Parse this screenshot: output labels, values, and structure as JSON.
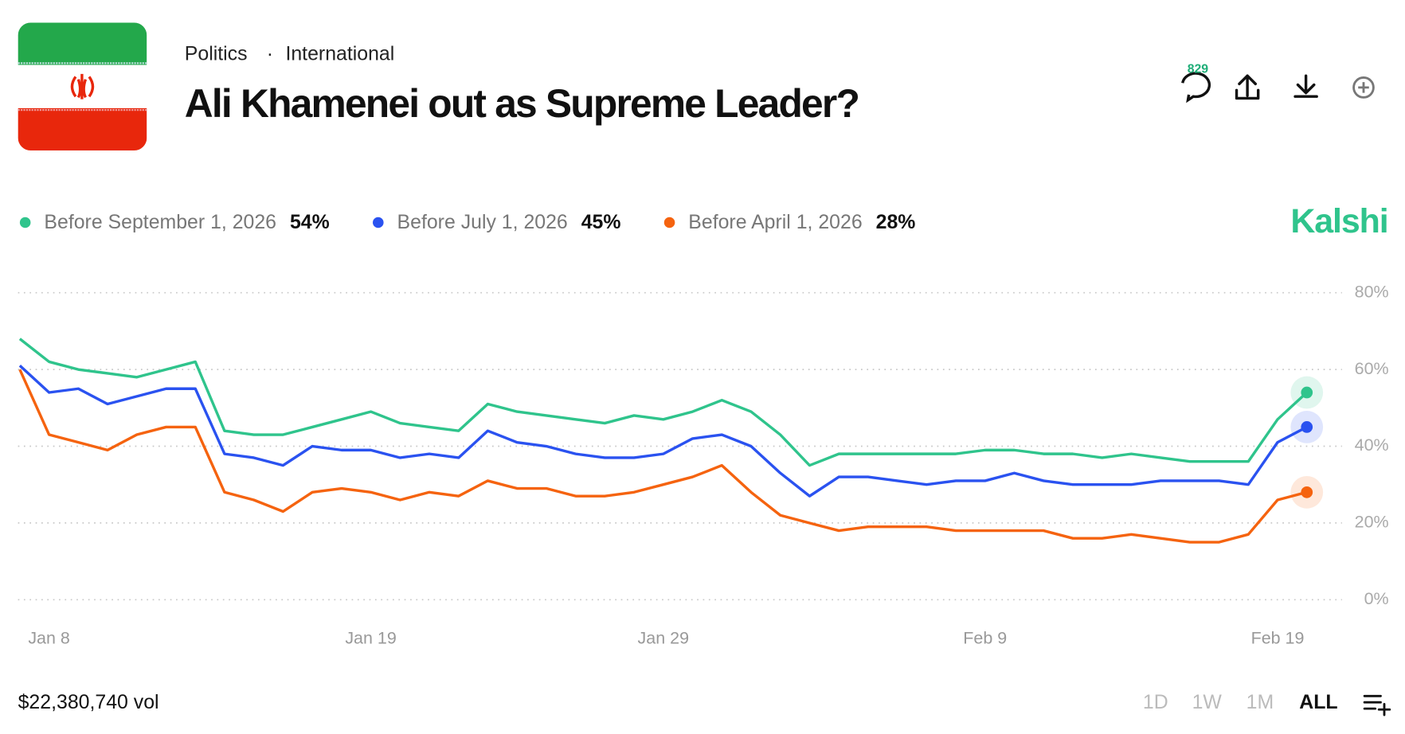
{
  "breadcrumb": [
    "Politics",
    "International"
  ],
  "title": "Ali Khamenei out as Supreme Leader?",
  "comments": "829",
  "brand": "Kalshi",
  "volume": "$22,380,740 vol",
  "ranges": [
    "1D",
    "1W",
    "1M",
    "ALL"
  ],
  "chart_data": {
    "type": "line",
    "x": [
      "Jan 7",
      "Jan 8",
      "Jan 9",
      "Jan 10",
      "Jan 11",
      "Jan 12",
      "Jan 13",
      "Jan 14",
      "Jan 15",
      "Jan 16",
      "Jan 17",
      "Jan 18",
      "Jan 19",
      "Jan 20",
      "Jan 21",
      "Jan 22",
      "Jan 23",
      "Jan 24",
      "Jan 25",
      "Jan 26",
      "Jan 27",
      "Jan 28",
      "Jan 29",
      "Jan 30",
      "Jan 31",
      "Feb 1",
      "Feb 2",
      "Feb 3",
      "Feb 4",
      "Feb 5",
      "Feb 6",
      "Feb 7",
      "Feb 8",
      "Feb 9",
      "Feb 10",
      "Feb 11",
      "Feb 12",
      "Feb 13",
      "Feb 14",
      "Feb 15",
      "Feb 16",
      "Feb 17",
      "Feb 18",
      "Feb 19",
      "Feb 20"
    ],
    "xticks": [
      "Jan 8",
      "Jan 19",
      "Jan 29",
      "Feb 9",
      "Feb 19"
    ],
    "ylim": [
      0,
      80
    ],
    "yticks": [
      {
        "value": 0,
        "label": "0%"
      },
      {
        "value": 20,
        "label": "20%"
      },
      {
        "value": 40,
        "label": "40%"
      },
      {
        "value": 60,
        "label": "60%"
      },
      {
        "value": 80,
        "label": "80%"
      }
    ],
    "grid": true,
    "series": [
      {
        "name": "Before September 1, 2026",
        "color": "#2fc48c",
        "current": {
          "value": 54,
          "label": "54%"
        },
        "values": [
          68,
          62,
          60,
          59,
          58,
          60,
          62,
          44,
          43,
          43,
          45,
          47,
          49,
          46,
          45,
          44,
          51,
          49,
          48,
          47,
          46,
          48,
          47,
          49,
          52,
          49,
          43,
          35,
          38,
          38,
          38,
          38,
          38,
          39,
          39,
          38,
          38,
          37,
          38,
          37,
          36,
          36,
          36,
          47,
          54
        ]
      },
      {
        "name": "Before July 1, 2026",
        "color": "#2a52f0",
        "current": {
          "value": 45,
          "label": "45%"
        },
        "values": [
          61,
          54,
          55,
          51,
          53,
          55,
          55,
          38,
          37,
          35,
          40,
          39,
          39,
          37,
          38,
          37,
          44,
          41,
          40,
          38,
          37,
          37,
          38,
          42,
          43,
          40,
          33,
          27,
          32,
          32,
          31,
          30,
          31,
          31,
          33,
          31,
          30,
          30,
          30,
          31,
          31,
          31,
          30,
          41,
          45
        ]
      },
      {
        "name": "Before April 1, 2026",
        "color": "#f5630f",
        "current": {
          "value": 28,
          "label": "28%"
        },
        "values": [
          60,
          43,
          41,
          39,
          43,
          45,
          45,
          28,
          26,
          23,
          28,
          29,
          28,
          26,
          28,
          27,
          31,
          29,
          29,
          27,
          27,
          28,
          30,
          32,
          35,
          28,
          22,
          20,
          18,
          19,
          19,
          19,
          18,
          18,
          18,
          18,
          16,
          16,
          17,
          16,
          15,
          15,
          17,
          26,
          28
        ]
      }
    ]
  }
}
